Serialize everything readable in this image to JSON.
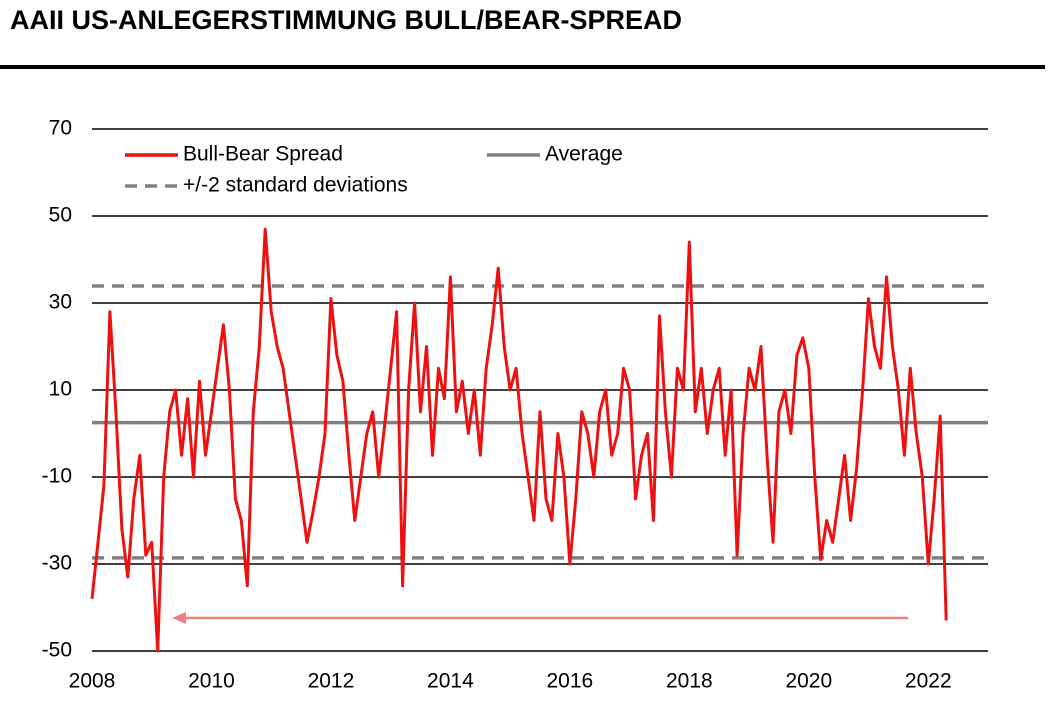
{
  "chart_data": {
    "type": "line",
    "title": "AAII US-ANLEGERSTIMMUNG BULL/BEAR-SPREAD",
    "x": [
      2008.0,
      2008.1,
      2008.2,
      2008.3,
      2008.4,
      2008.5,
      2008.6,
      2008.7,
      2008.8,
      2008.9,
      2009.0,
      2009.1,
      2009.2,
      2009.3,
      2009.4,
      2009.5,
      2009.6,
      2009.7,
      2009.8,
      2009.9,
      2010.0,
      2010.1,
      2010.2,
      2010.3,
      2010.4,
      2010.5,
      2010.6,
      2010.7,
      2010.8,
      2010.9,
      2011.0,
      2011.1,
      2011.2,
      2011.3,
      2011.4,
      2011.5,
      2011.6,
      2011.7,
      2011.8,
      2011.9,
      2012.0,
      2012.1,
      2012.2,
      2012.3,
      2012.4,
      2012.5,
      2012.6,
      2012.7,
      2012.8,
      2012.9,
      2013.0,
      2013.1,
      2013.2,
      2013.3,
      2013.4,
      2013.5,
      2013.6,
      2013.7,
      2013.8,
      2013.9,
      2014.0,
      2014.1,
      2014.2,
      2014.3,
      2014.4,
      2014.5,
      2014.6,
      2014.7,
      2014.8,
      2014.9,
      2015.0,
      2015.1,
      2015.2,
      2015.3,
      2015.4,
      2015.5,
      2015.6,
      2015.7,
      2015.8,
      2015.9,
      2016.0,
      2016.1,
      2016.2,
      2016.3,
      2016.4,
      2016.5,
      2016.6,
      2016.7,
      2016.8,
      2016.9,
      2017.0,
      2017.1,
      2017.2,
      2017.3,
      2017.4,
      2017.5,
      2017.6,
      2017.7,
      2017.8,
      2017.9,
      2018.0,
      2018.1,
      2018.2,
      2018.3,
      2018.4,
      2018.5,
      2018.6,
      2018.7,
      2018.8,
      2018.9,
      2019.0,
      2019.1,
      2019.2,
      2019.3,
      2019.4,
      2019.5,
      2019.6,
      2019.7,
      2019.8,
      2019.9,
      2020.0,
      2020.1,
      2020.2,
      2020.3,
      2020.4,
      2020.5,
      2020.6,
      2020.7,
      2020.8,
      2020.9,
      2021.0,
      2021.1,
      2021.2,
      2021.3,
      2021.4,
      2021.5,
      2021.6,
      2021.7,
      2021.8,
      2021.9,
      2022.0,
      2022.1,
      2022.2,
      2022.3
    ],
    "series": [
      {
        "name": "Bull-Bear Spread",
        "color": "#ee1111",
        "values": [
          -38,
          -25,
          -12,
          28,
          5,
          -22,
          -33,
          -15,
          -5,
          -28,
          -25,
          -50,
          -10,
          5,
          10,
          -5,
          8,
          -10,
          12,
          -5,
          5,
          15,
          25,
          10,
          -15,
          -20,
          -35,
          5,
          20,
          47,
          28,
          20,
          15,
          5,
          -5,
          -15,
          -25,
          -18,
          -10,
          0,
          31,
          18,
          12,
          -5,
          -20,
          -10,
          0,
          5,
          -10,
          2,
          15,
          28,
          -35,
          10,
          30,
          5,
          20,
          -5,
          15,
          8,
          36,
          5,
          12,
          0,
          10,
          -5,
          15,
          25,
          38,
          20,
          10,
          15,
          0,
          -10,
          -20,
          5,
          -15,
          -20,
          0,
          -10,
          -30,
          -15,
          5,
          0,
          -10,
          5,
          10,
          -5,
          0,
          15,
          10,
          -15,
          -5,
          0,
          -20,
          27,
          5,
          -10,
          15,
          10,
          44,
          5,
          15,
          0,
          10,
          15,
          -5,
          10,
          -28,
          0,
          15,
          10,
          20,
          -5,
          -25,
          5,
          10,
          0,
          18,
          22,
          15,
          -10,
          -29,
          -20,
          -25,
          -15,
          -5,
          -20,
          -8,
          10,
          31,
          20,
          15,
          36,
          20,
          10,
          -5,
          15,
          0,
          -10,
          -30,
          -15,
          4,
          -43
        ]
      }
    ],
    "reference_lines": [
      {
        "name": "Average",
        "color": "#808080",
        "dashed": false,
        "values": [
          2.5
        ]
      },
      {
        "name": "+/-2 standard deviations",
        "color": "#808080",
        "dashed": true,
        "values": [
          33.9,
          -28.6
        ]
      }
    ],
    "xlim": [
      2008,
      2023
    ],
    "xticks": [
      2008,
      2010,
      2012,
      2014,
      2016,
      2018,
      2020,
      2022
    ],
    "ylim": [
      -50,
      70
    ],
    "yticks": [
      -50,
      -30,
      -10,
      10,
      30,
      50,
      70
    ],
    "grid": true
  }
}
